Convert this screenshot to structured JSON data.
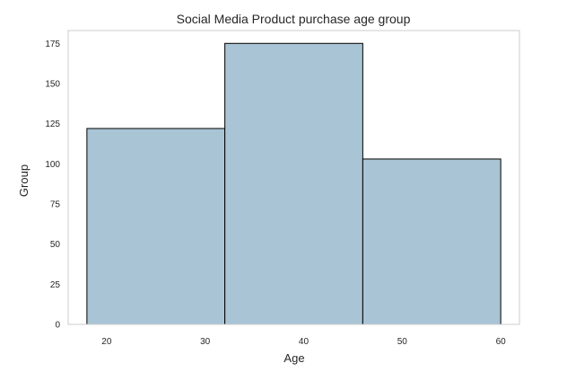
{
  "chart_data": {
    "type": "bar",
    "title": "Social Media Product purchase age group",
    "xlabel": "Age",
    "ylabel": "Group",
    "bins": [
      {
        "x0": 18,
        "x1": 32,
        "value": 122
      },
      {
        "x0": 32,
        "x1": 46,
        "value": 175
      },
      {
        "x0": 46,
        "x1": 60,
        "value": 103
      }
    ],
    "xlim": [
      16.1,
      61.9
    ],
    "ylim": [
      0,
      183
    ],
    "xticks": [
      20,
      30,
      40,
      50,
      60
    ],
    "yticks": [
      0,
      25,
      50,
      75,
      100,
      125,
      150,
      175
    ],
    "grid": false,
    "bar_color": "#a9c4d4",
    "edge_color": "#000000",
    "spine_color": "#cccccc"
  }
}
